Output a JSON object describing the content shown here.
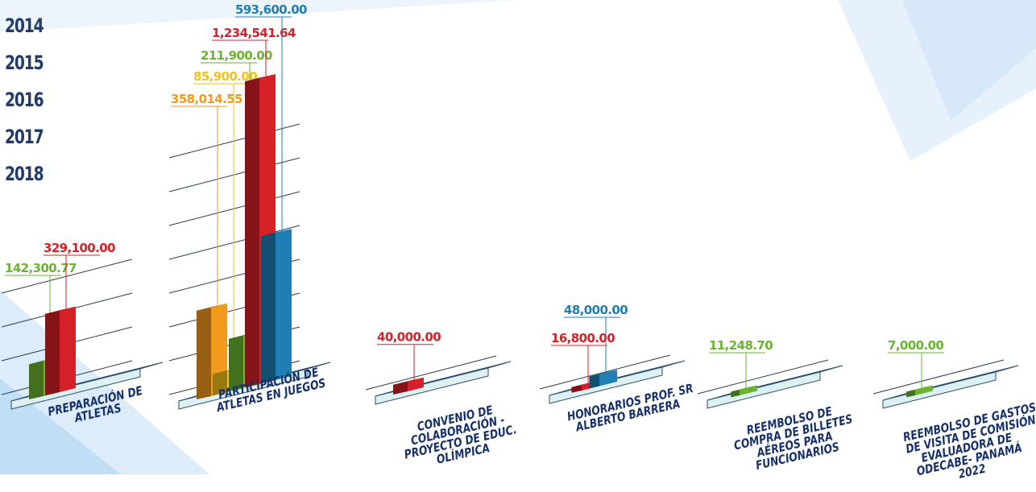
{
  "legend": {
    "years": [
      {
        "label": "2014",
        "color": "#d62028"
      },
      {
        "label": "2015",
        "color": "#6ab52d"
      },
      {
        "label": "2016",
        "color": "#f5c21a"
      },
      {
        "label": "2017",
        "color": "#f29a1c"
      },
      {
        "label": "2018",
        "color": "#1f7fb5"
      }
    ]
  },
  "chart_data": {
    "type": "bar",
    "style": "3d-isometric",
    "categories": [
      "PREPARACIÓN DE ATLETAS",
      "PARTICIPACIÓN DE ATLETAS EN JUEGOS",
      "CONVENIO DE COLABORACIÓN - PROYECTO DE EDUC. OLÍMPICA",
      "HONORARIOS PROF. SR ALBERTO BARRERA",
      "REEMBOLSO DE COMPRA DE BILLETES AÉREOS PARA FUNCIONARIOS",
      "REEMBOLSO DE GASTOS DE VISITA DE COMISIÓN EVALUADORA DE ODECABE- PANAMÁ 2022"
    ],
    "category_lines": [
      [
        "PREPARACIÓN DE",
        "ATLETAS"
      ],
      [
        "PARTICIPACIÓN DE",
        "ATLETAS EN JUEGOS"
      ],
      [
        "CONVENIO DE",
        "COLABORACIÓN -",
        "PROYECTO DE EDUC.",
        "OLÍMPICA"
      ],
      [
        "HONORARIOS PROF. SR",
        "ALBERTO BARRERA"
      ],
      [
        "REEMBOLSO DE",
        "COMPRA DE BILLETES",
        "AÉREOS PARA",
        "FUNCIONARIOS"
      ],
      [
        "REEMBOLSO DE GASTOS",
        "DE VISITA DE COMISIÓN",
        "EVALUADORA DE",
        "ODECABE- PANAMÁ",
        "2022"
      ]
    ],
    "bars": [
      [
        {
          "year": "2015",
          "value": 142300.77,
          "label": "142,300.77"
        },
        {
          "year": "2014",
          "value": 329100.0,
          "label": "329,100.00"
        }
      ],
      [
        {
          "year": "2017",
          "value": 358014.55,
          "label": "358,014.55"
        },
        {
          "year": "2016",
          "value": 85900.0,
          "label": "85,900.00"
        },
        {
          "year": "2015",
          "value": 211900.0,
          "label": "211,900.00"
        },
        {
          "year": "2014",
          "value": 1234541.64,
          "label": "1,234,541.64"
        },
        {
          "year": "2018",
          "value": 593600.0,
          "label": "593,600.00"
        }
      ],
      [
        {
          "year": "2014",
          "value": 40000.0,
          "label": "40,000.00"
        }
      ],
      [
        {
          "year": "2014",
          "value": 16800.0,
          "label": "16,800.00"
        },
        {
          "year": "2018",
          "value": 48000.0,
          "label": "48,000.00"
        }
      ],
      [
        {
          "year": "2015",
          "value": 11248.7,
          "label": "11,248.70"
        }
      ],
      [
        {
          "year": "2015",
          "value": 7000.0,
          "label": "7,000.00"
        }
      ]
    ],
    "grid": true,
    "legend_position": "top-left"
  }
}
